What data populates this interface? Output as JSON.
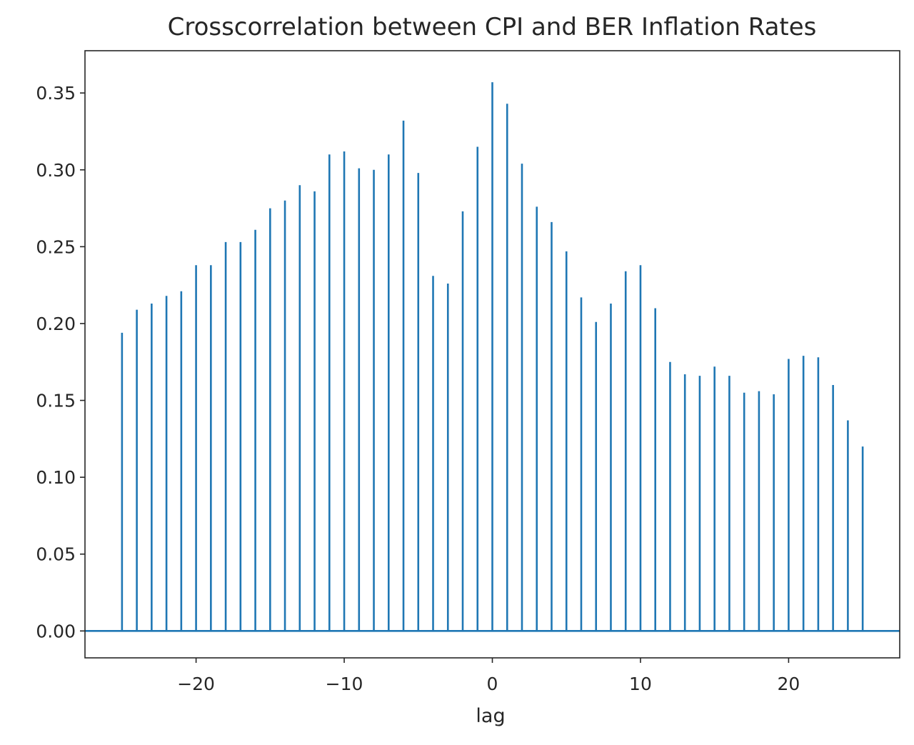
{
  "chart_data": {
    "type": "bar",
    "title": "Crosscorrelation between CPI and BER Inflation Rates",
    "xlabel": "lag",
    "ylabel": "",
    "xlim": [
      -27.5,
      27.5
    ],
    "ylim": [
      -0.0175,
      0.3775
    ],
    "xticks": [
      -20,
      -10,
      0,
      10,
      20
    ],
    "xtick_labels": [
      "−20",
      "−10",
      "0",
      "10",
      "20"
    ],
    "yticks": [
      0.0,
      0.05,
      0.1,
      0.15,
      0.2,
      0.25,
      0.3,
      0.35
    ],
    "ytick_labels": [
      "0.00",
      "0.05",
      "0.10",
      "0.15",
      "0.20",
      "0.25",
      "0.30",
      "0.35"
    ],
    "grid": false,
    "color": "#1f77b4",
    "lags": [
      -25,
      -24,
      -23,
      -22,
      -21,
      -20,
      -19,
      -18,
      -17,
      -16,
      -15,
      -14,
      -13,
      -12,
      -11,
      -10,
      -9,
      -8,
      -7,
      -6,
      -5,
      -4,
      -3,
      -2,
      -1,
      0,
      1,
      2,
      3,
      4,
      5,
      6,
      7,
      8,
      9,
      10,
      11,
      12,
      13,
      14,
      15,
      16,
      17,
      18,
      19,
      20,
      21,
      22,
      23,
      24,
      25
    ],
    "values": [
      0.194,
      0.209,
      0.213,
      0.218,
      0.221,
      0.238,
      0.238,
      0.253,
      0.253,
      0.261,
      0.275,
      0.28,
      0.29,
      0.286,
      0.31,
      0.312,
      0.301,
      0.3,
      0.31,
      0.332,
      0.298,
      0.231,
      0.226,
      0.273,
      0.315,
      0.357,
      0.343,
      0.304,
      0.276,
      0.266,
      0.247,
      0.217,
      0.201,
      0.213,
      0.234,
      0.238,
      0.21,
      0.175,
      0.167,
      0.166,
      0.172,
      0.166,
      0.155,
      0.156,
      0.154,
      0.177,
      0.179,
      0.178,
      0.16,
      0.137,
      0.12
    ]
  }
}
